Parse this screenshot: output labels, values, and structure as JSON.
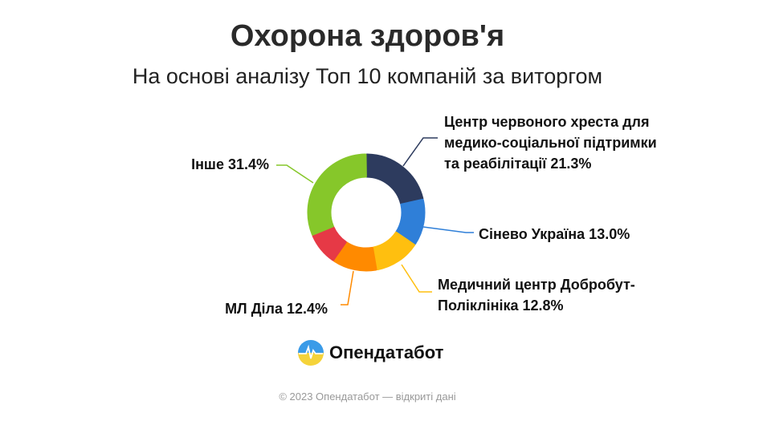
{
  "chart_data": {
    "type": "pie",
    "title": "Охорона здоров'я",
    "subtitle": "На основі аналізу Топ 10 компаній за виторгом",
    "slices": [
      {
        "name": "Центр червоного хреста для медико-соціальної підтримки та реабілітації",
        "value": 21.3,
        "label_lines": [
          "Центр червоного хреста для",
          "медико-соціальної підтримки",
          "та реабілітації 21.3%"
        ],
        "color": "#2d3b5e"
      },
      {
        "name": "Сінево Україна",
        "value": 13.0,
        "label_lines": [
          "Сінево Україна 13.0%"
        ],
        "color": "#2f7fd8"
      },
      {
        "name": "Медичний центр Добробут-Поліклініка",
        "value": 12.8,
        "label_lines": [
          "Медичний центр Добробут-",
          "Поліклініка 12.8%"
        ],
        "color": "#ffbf0f"
      },
      {
        "name": "МЛ Діла",
        "value": 12.4,
        "label_lines": [
          "МЛ Діла 12.4%"
        ],
        "color": "#ff8a00"
      },
      {
        "name": "",
        "value": 9.1,
        "label_lines": [],
        "color": "#e63946"
      },
      {
        "name": "Інше",
        "value": 31.4,
        "label_lines": [
          "Інше 31.4%"
        ],
        "color": "#86c72a"
      }
    ]
  },
  "logo": {
    "text": "Опендатабот"
  },
  "footer": "© 2023 Опендатабот — відкриті дані"
}
